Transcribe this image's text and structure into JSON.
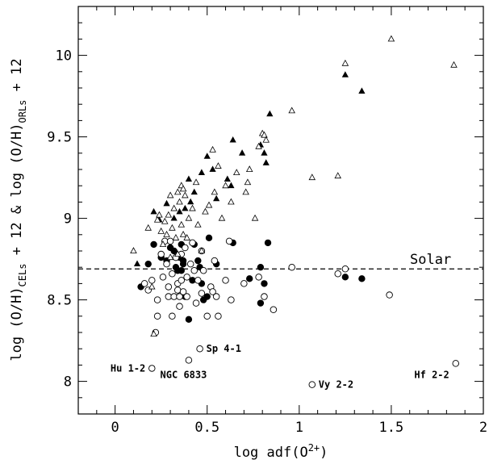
{
  "chart_data": {
    "type": "scatter",
    "xlabel": "log adf(O2+)",
    "ylabel_parts": [
      "log (O/H)",
      "CELs",
      " + 12 & log (O/H)",
      "ORLs",
      " + 12"
    ],
    "xlim": [
      -0.2,
      2.0
    ],
    "ylim": [
      7.8,
      10.3
    ],
    "x_ticks": [
      "0",
      "0.5",
      "1",
      "1.5",
      "2"
    ],
    "x_tick_values": [
      0,
      0.5,
      1,
      1.5,
      2
    ],
    "y_ticks": [
      "8",
      "8.5",
      "9",
      "9.5",
      "10"
    ],
    "y_tick_values": [
      8,
      8.5,
      9,
      9.5,
      10
    ],
    "solar_line": {
      "y": 8.69,
      "label": "Solar"
    },
    "series": [
      {
        "marker": "filled-circle",
        "points": [
          [
            0.14,
            8.58
          ],
          [
            0.18,
            8.72
          ],
          [
            0.21,
            8.84
          ],
          [
            0.25,
            8.76
          ],
          [
            0.28,
            8.74
          ],
          [
            0.3,
            8.82
          ],
          [
            0.32,
            8.8
          ],
          [
            0.33,
            8.7
          ],
          [
            0.34,
            8.68
          ],
          [
            0.35,
            8.76
          ],
          [
            0.36,
            8.68
          ],
          [
            0.37,
            8.74
          ],
          [
            0.38,
            8.52
          ],
          [
            0.36,
            8.84
          ],
          [
            0.37,
            8.72
          ],
          [
            0.4,
            8.38
          ],
          [
            0.42,
            8.62
          ],
          [
            0.43,
            8.84
          ],
          [
            0.45,
            8.74
          ],
          [
            0.46,
            8.7
          ],
          [
            0.47,
            8.6
          ],
          [
            0.48,
            8.5
          ],
          [
            0.5,
            8.52
          ],
          [
            0.51,
            8.88
          ],
          [
            0.55,
            8.72
          ],
          [
            0.64,
            8.85
          ],
          [
            0.79,
            8.7
          ],
          [
            0.73,
            8.63
          ],
          [
            0.79,
            8.48
          ],
          [
            0.81,
            8.6
          ],
          [
            0.83,
            8.85
          ],
          [
            1.25,
            8.64
          ],
          [
            1.34,
            8.63
          ]
        ]
      },
      {
        "marker": "open-circle",
        "points": [
          [
            0.16,
            8.6
          ],
          [
            0.18,
            8.56
          ],
          [
            0.2,
            8.62
          ],
          [
            0.22,
            8.3
          ],
          [
            0.23,
            8.4
          ],
          [
            0.23,
            8.5
          ],
          [
            0.25,
            8.78
          ],
          [
            0.26,
            8.64
          ],
          [
            0.27,
            8.86
          ],
          [
            0.28,
            8.72
          ],
          [
            0.29,
            8.52
          ],
          [
            0.29,
            8.58
          ],
          [
            0.3,
            8.86
          ],
          [
            0.31,
            8.66
          ],
          [
            0.31,
            8.4
          ],
          [
            0.32,
            8.52
          ],
          [
            0.33,
            8.76
          ],
          [
            0.34,
            8.6
          ],
          [
            0.34,
            8.56
          ],
          [
            0.35,
            8.46
          ],
          [
            0.35,
            8.52
          ],
          [
            0.36,
            8.62
          ],
          [
            0.36,
            8.78
          ],
          [
            0.37,
            8.55
          ],
          [
            0.38,
            8.82
          ],
          [
            0.39,
            8.64
          ],
          [
            0.39,
            8.52
          ],
          [
            0.41,
            8.72
          ],
          [
            0.42,
            8.85
          ],
          [
            0.43,
            8.68
          ],
          [
            0.44,
            8.48
          ],
          [
            0.45,
            8.62
          ],
          [
            0.47,
            8.54
          ],
          [
            0.47,
            8.8
          ],
          [
            0.48,
            8.68
          ],
          [
            0.5,
            8.4
          ],
          [
            0.52,
            8.58
          ],
          [
            0.53,
            8.55
          ],
          [
            0.54,
            8.74
          ],
          [
            0.55,
            8.52
          ],
          [
            0.56,
            8.4
          ],
          [
            0.6,
            8.62
          ],
          [
            0.62,
            8.86
          ],
          [
            0.63,
            8.5
          ],
          [
            0.7,
            8.6
          ],
          [
            0.78,
            8.64
          ],
          [
            0.81,
            8.52
          ],
          [
            0.86,
            8.44
          ],
          [
            0.96,
            8.7
          ],
          [
            1.21,
            8.66
          ],
          [
            1.25,
            8.69
          ],
          [
            1.49,
            8.53
          ],
          [
            1.85,
            8.11
          ],
          [
            0.46,
            8.2
          ],
          [
            0.4,
            8.13
          ],
          [
            0.2,
            8.08
          ],
          [
            1.07,
            7.98
          ]
        ]
      },
      {
        "marker": "filled-triangle",
        "points": [
          [
            0.12,
            8.72
          ],
          [
            0.21,
            9.04
          ],
          [
            0.24,
            8.99
          ],
          [
            0.28,
            9.09
          ],
          [
            0.32,
            9.0
          ],
          [
            0.35,
            9.04
          ],
          [
            0.38,
            9.06
          ],
          [
            0.43,
            9.16
          ],
          [
            0.5,
            9.38
          ],
          [
            0.53,
            9.3
          ],
          [
            0.61,
            9.24
          ],
          [
            0.64,
            9.48
          ],
          [
            0.69,
            9.4
          ],
          [
            0.79,
            9.45
          ],
          [
            0.81,
            9.4
          ],
          [
            0.84,
            9.64
          ],
          [
            1.25,
            9.88
          ],
          [
            1.34,
            9.78
          ],
          [
            0.4,
            9.24
          ],
          [
            0.47,
            9.28
          ],
          [
            0.37,
            9.18
          ],
          [
            0.41,
            9.1
          ],
          [
            0.55,
            9.12
          ],
          [
            0.63,
            9.2
          ],
          [
            0.82,
            9.34
          ]
        ]
      },
      {
        "marker": "open-triangle",
        "points": [
          [
            0.1,
            8.8
          ],
          [
            0.18,
            8.94
          ],
          [
            0.2,
            8.58
          ],
          [
            0.21,
            8.29
          ],
          [
            0.23,
            8.99
          ],
          [
            0.24,
            9.02
          ],
          [
            0.25,
            8.92
          ],
          [
            0.26,
            8.84
          ],
          [
            0.27,
            8.98
          ],
          [
            0.28,
            8.9
          ],
          [
            0.29,
            9.02
          ],
          [
            0.3,
            8.76
          ],
          [
            0.3,
            9.14
          ],
          [
            0.31,
            8.94
          ],
          [
            0.32,
            9.06
          ],
          [
            0.33,
            8.88
          ],
          [
            0.34,
            9.16
          ],
          [
            0.34,
            8.78
          ],
          [
            0.35,
            9.1
          ],
          [
            0.36,
            9.2
          ],
          [
            0.36,
            8.96
          ],
          [
            0.37,
            8.9
          ],
          [
            0.37,
            9.18
          ],
          [
            0.38,
            9.14
          ],
          [
            0.39,
            8.88
          ],
          [
            0.4,
            9.0
          ],
          [
            0.42,
            9.06
          ],
          [
            0.44,
            9.22
          ],
          [
            0.45,
            8.96
          ],
          [
            0.47,
            8.8
          ],
          [
            0.49,
            9.04
          ],
          [
            0.51,
            9.08
          ],
          [
            0.53,
            9.42
          ],
          [
            0.56,
            9.32
          ],
          [
            0.6,
            9.2
          ],
          [
            0.66,
            9.28
          ],
          [
            0.71,
            9.16
          ],
          [
            0.72,
            9.22
          ],
          [
            0.76,
            9.0
          ],
          [
            0.78,
            9.44
          ],
          [
            0.8,
            9.52
          ],
          [
            0.81,
            9.51
          ],
          [
            0.82,
            9.48
          ],
          [
            0.96,
            9.66
          ],
          [
            1.07,
            9.25
          ],
          [
            1.21,
            9.26
          ],
          [
            1.25,
            9.95
          ],
          [
            1.5,
            10.1
          ],
          [
            1.84,
            9.94
          ],
          [
            0.54,
            9.16
          ],
          [
            0.63,
            9.1
          ],
          [
            0.73,
            9.3
          ],
          [
            0.58,
            9.0
          ]
        ]
      }
    ],
    "annotations": [
      {
        "text": "Hu 1-2",
        "x": 0.2,
        "y": 8.08,
        "anchor": "end"
      },
      {
        "text": "NGC 6833",
        "x": 0.21,
        "y": 8.04,
        "anchor": "start"
      },
      {
        "text": "Sp 4-1",
        "x": 0.46,
        "y": 8.2,
        "anchor": "start"
      },
      {
        "text": "Vy 2-2",
        "x": 1.07,
        "y": 7.98,
        "anchor": "start"
      },
      {
        "text": "Hf 2-2",
        "x": 1.85,
        "y": 8.04,
        "anchor": "end"
      }
    ]
  }
}
